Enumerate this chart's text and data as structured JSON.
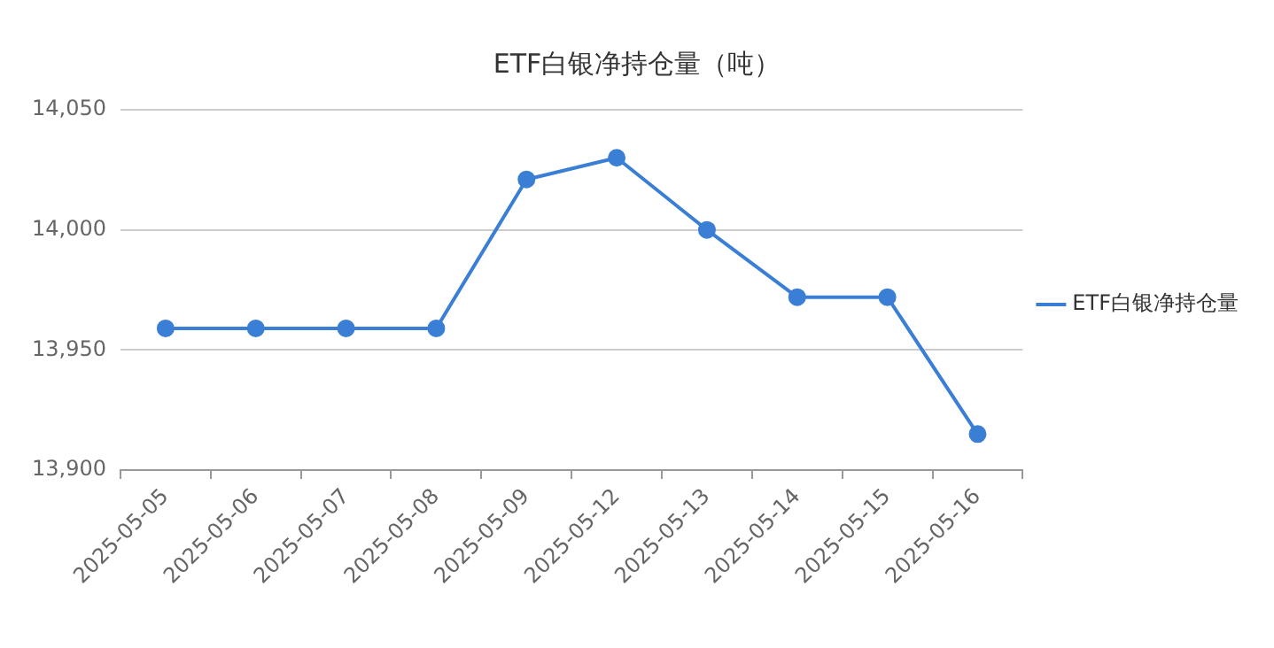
{
  "chart_data": {
    "type": "line",
    "title": "ETF白银净持仓量（吨）",
    "categories": [
      "2025-05-05",
      "2025-05-06",
      "2025-05-07",
      "2025-05-08",
      "2025-05-09",
      "2025-05-12",
      "2025-05-13",
      "2025-05-14",
      "2025-05-15",
      "2025-05-16"
    ],
    "series": [
      {
        "name": "ETF白银净持仓量",
        "color": "#3a7fd5",
        "values": [
          13959,
          13959,
          13959,
          13959,
          14021,
          14030,
          14000,
          13972,
          13972,
          13915
        ]
      }
    ],
    "ylim": [
      13900,
      14050
    ],
    "yticks": [
      {
        "value": 13900,
        "label": "13,900"
      },
      {
        "value": 13950,
        "label": "13,950"
      },
      {
        "value": 14000,
        "label": "14,000"
      },
      {
        "value": 14050,
        "label": "14,050"
      }
    ],
    "grid": "y",
    "legend": "right",
    "marker": "circle",
    "line_style": "solid"
  }
}
